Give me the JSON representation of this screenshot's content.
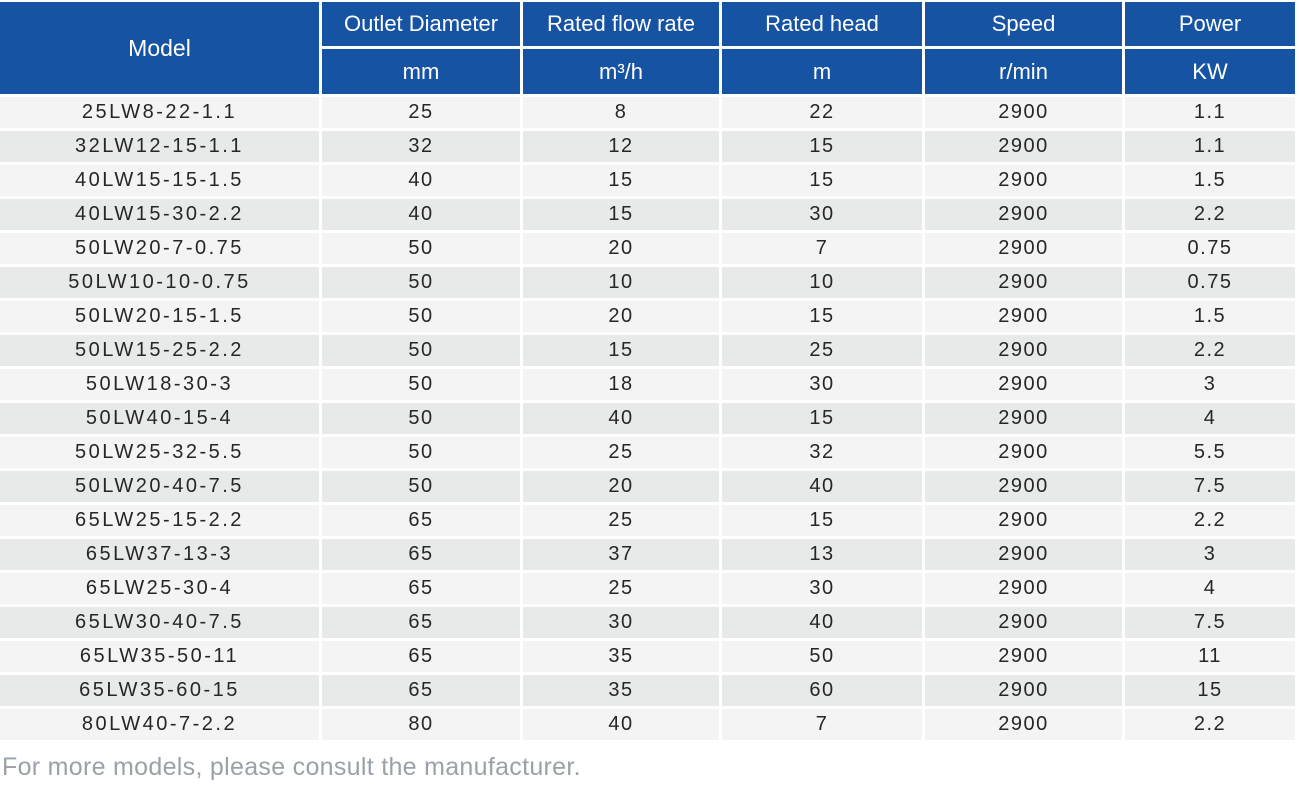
{
  "colors": {
    "header_bg": "#1753a3",
    "header_text": "#ffffff",
    "row_odd_bg": "#f4f4f4",
    "row_even_bg": "#e8eae9",
    "data_text": "#262626",
    "footer_text": "#9aa1a8"
  },
  "table": {
    "columns": [
      {
        "label": "Model",
        "unit": ""
      },
      {
        "label": "Outlet Diameter",
        "unit": "mm"
      },
      {
        "label": "Rated flow rate",
        "unit": "m³/h"
      },
      {
        "label": "Rated head",
        "unit": "m"
      },
      {
        "label": "Speed",
        "unit": "r/min"
      },
      {
        "label": "Power",
        "unit": "KW"
      }
    ],
    "rows": [
      [
        "25LW8-22-1.1",
        "25",
        "8",
        "22",
        "2900",
        "1.1"
      ],
      [
        "32LW12-15-1.1",
        "32",
        "12",
        "15",
        "2900",
        "1.1"
      ],
      [
        "40LW15-15-1.5",
        "40",
        "15",
        "15",
        "2900",
        "1.5"
      ],
      [
        "40LW15-30-2.2",
        "40",
        "15",
        "30",
        "2900",
        "2.2"
      ],
      [
        "50LW20-7-0.75",
        "50",
        "20",
        "7",
        "2900",
        "0.75"
      ],
      [
        "50LW10-10-0.75",
        "50",
        "10",
        "10",
        "2900",
        "0.75"
      ],
      [
        "50LW20-15-1.5",
        "50",
        "20",
        "15",
        "2900",
        "1.5"
      ],
      [
        "50LW15-25-2.2",
        "50",
        "15",
        "25",
        "2900",
        "2.2"
      ],
      [
        "50LW18-30-3",
        "50",
        "18",
        "30",
        "2900",
        "3"
      ],
      [
        "50LW40-15-4",
        "50",
        "40",
        "15",
        "2900",
        "4"
      ],
      [
        "50LW25-32-5.5",
        "50",
        "25",
        "32",
        "2900",
        "5.5"
      ],
      [
        "50LW20-40-7.5",
        "50",
        "20",
        "40",
        "2900",
        "7.5"
      ],
      [
        "65LW25-15-2.2",
        "65",
        "25",
        "15",
        "2900",
        "2.2"
      ],
      [
        "65LW37-13-3",
        "65",
        "37",
        "13",
        "2900",
        "3"
      ],
      [
        "65LW25-30-4",
        "65",
        "25",
        "30",
        "2900",
        "4"
      ],
      [
        "65LW30-40-7.5",
        "65",
        "30",
        "40",
        "2900",
        "7.5"
      ],
      [
        "65LW35-50-11",
        "65",
        "35",
        "50",
        "2900",
        "11"
      ],
      [
        "65LW35-60-15",
        "65",
        "35",
        "60",
        "2900",
        "15"
      ],
      [
        "80LW40-7-2.2",
        "80",
        "40",
        "7",
        "2900",
        "2.2"
      ]
    ]
  },
  "footer": {
    "note": "For more models, please consult the manufacturer."
  }
}
